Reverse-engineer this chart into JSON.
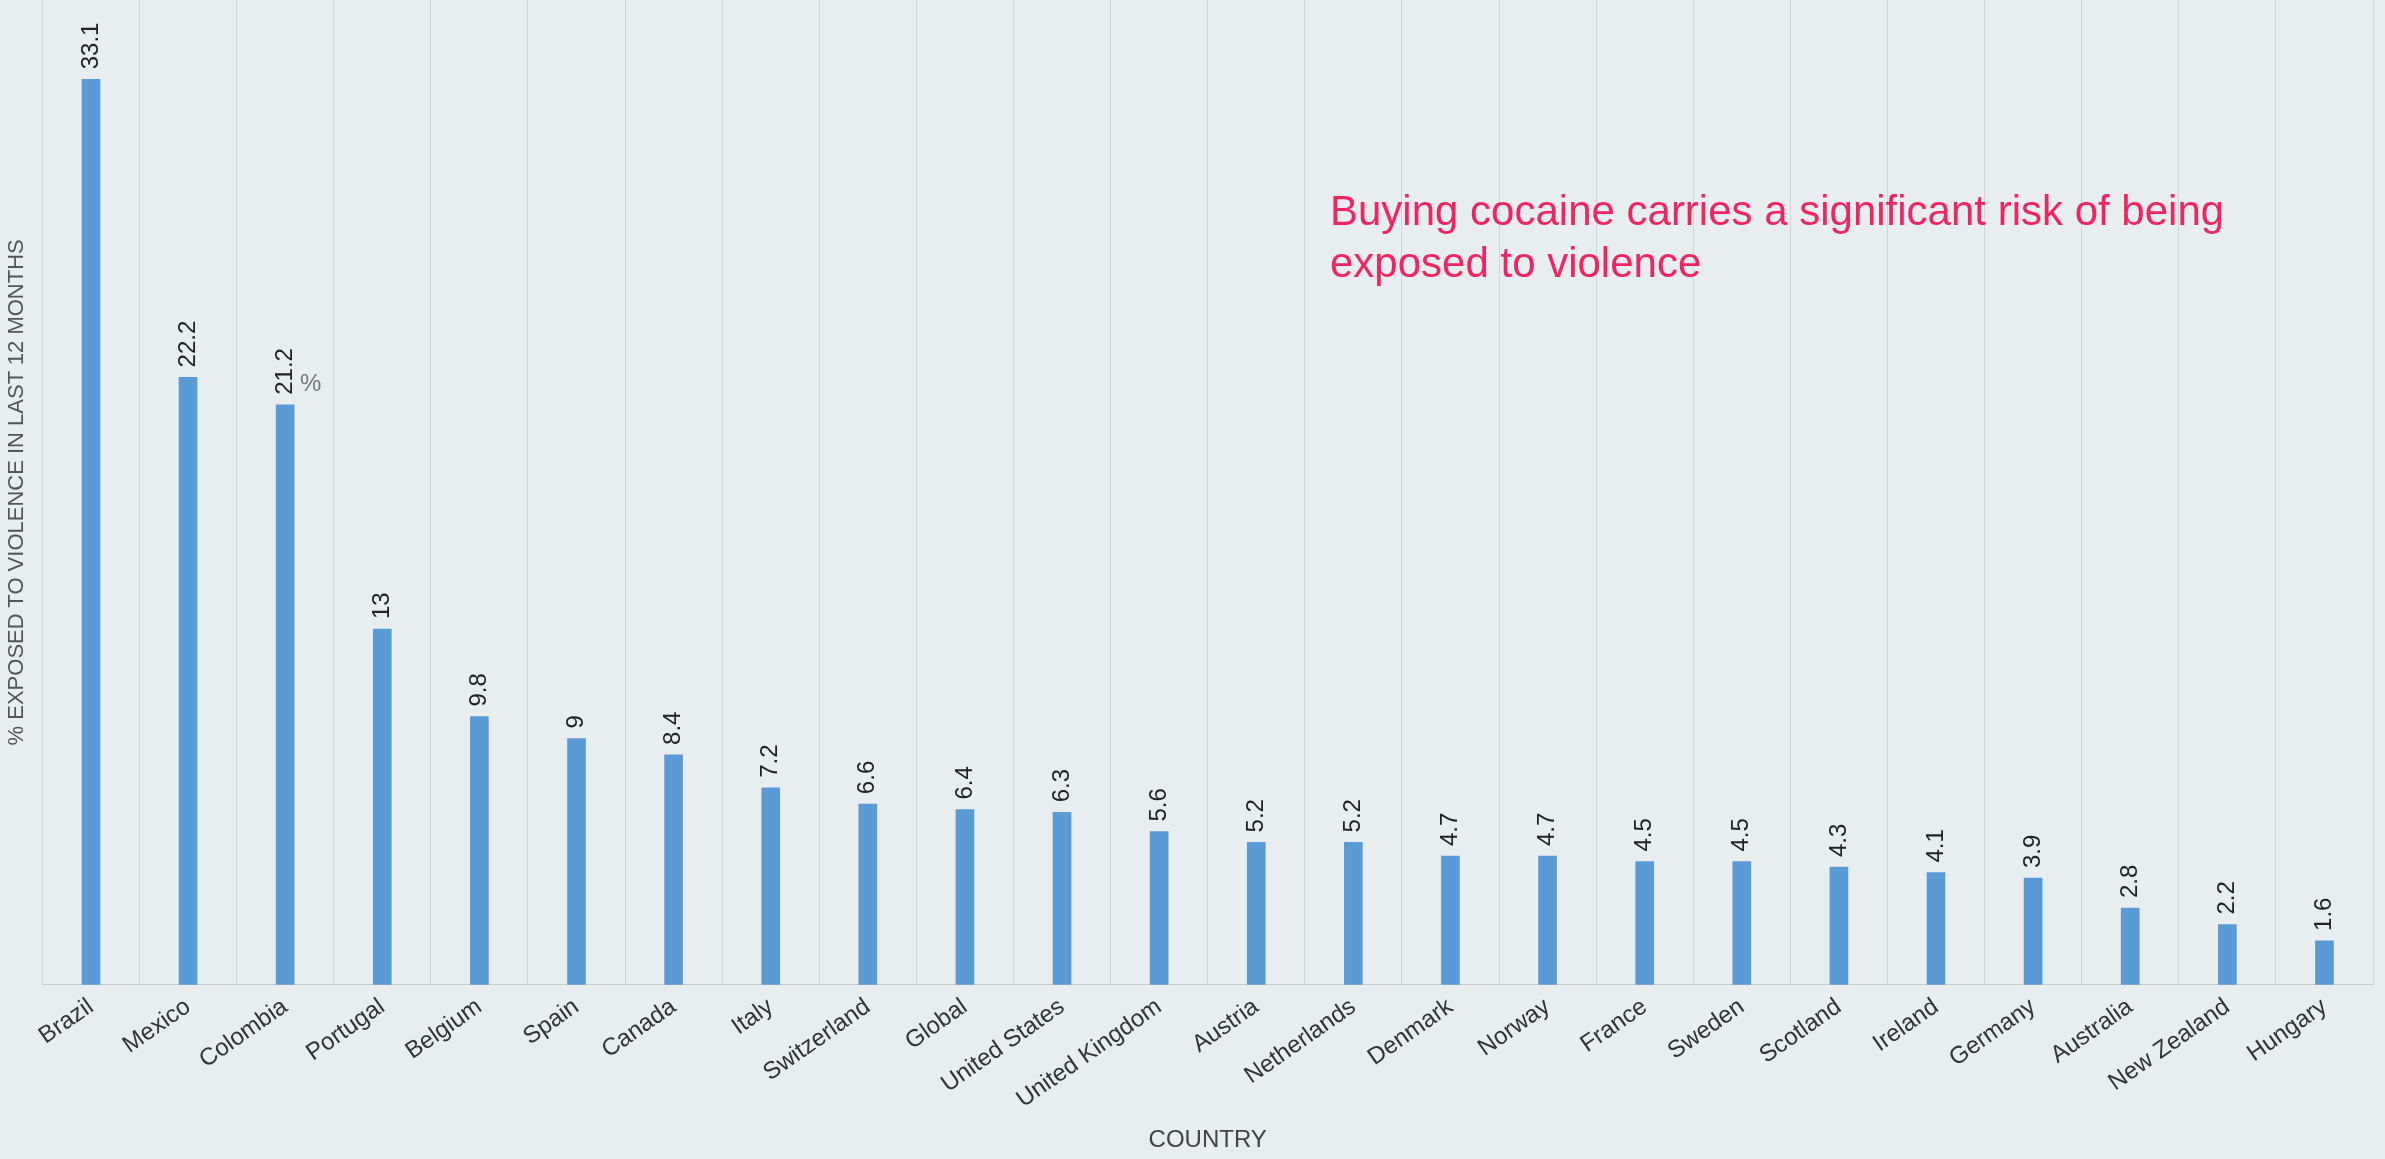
{
  "chart_data": {
    "type": "bar",
    "xlabel": "COUNTRY",
    "ylabel": "% EXPOSED TO VIOLENCE IN LAST 12 MONTHS",
    "categories": [
      "Brazil",
      "Mexico",
      "Colombia",
      "Portugal",
      "Belgium",
      "Spain",
      "Canada",
      "Italy",
      "Switzerland",
      "Global",
      "United States",
      "United Kingdom",
      "Austria",
      "Netherlands",
      "Denmark",
      "Norway",
      "France",
      "Sweden",
      "Scotland",
      "Ireland",
      "Germany",
      "Australia",
      "New Zealand",
      "Hungary"
    ],
    "values": [
      33.1,
      22.2,
      21.2,
      13,
      9.8,
      9,
      8.4,
      7.2,
      6.6,
      6.4,
      6.3,
      5.6,
      5.2,
      5.2,
      4.7,
      4.7,
      4.5,
      4.5,
      4.3,
      4.1,
      3.9,
      2.8,
      2.2,
      1.6
    ],
    "color": "#5b9bd5",
    "data_labels": true,
    "ylim": [
      0,
      36
    ],
    "grid": "x",
    "legend": false,
    "annotations": [
      "Buying cocaine  carries a significant risk of being exposed to violence",
      "%"
    ]
  }
}
